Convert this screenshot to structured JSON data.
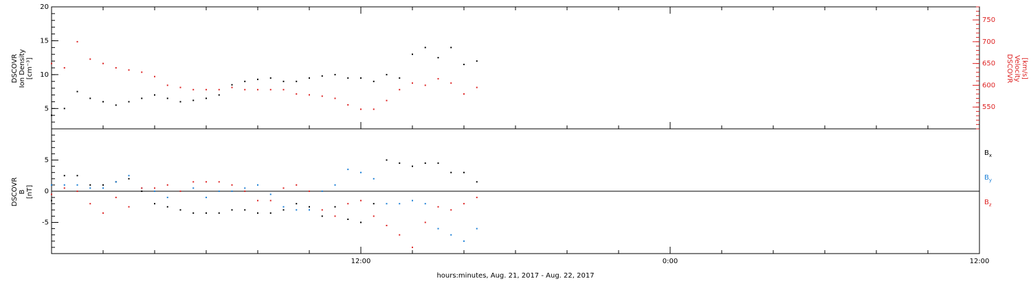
{
  "chart_data": [
    {
      "type": "scatter",
      "panel": "top",
      "ylabel_left": [
        "DSCOVR",
        "Ion Density",
        "[cm⁻³]"
      ],
      "ylabel_right": [
        "DSCOVR",
        "Velocity",
        "[km/s]"
      ],
      "x_range_hours": [
        -12,
        24
      ],
      "ylim_left": [
        2,
        20
      ],
      "ylim_right": [
        500,
        780
      ],
      "left_ticks": [
        "5",
        "10",
        "15",
        "20"
      ],
      "right_ticks": [
        "550",
        "600",
        "650",
        "700",
        "750"
      ],
      "series": [
        {
          "axis": "left",
          "color": "#000000",
          "x": [
            -12,
            -11.5,
            -11,
            -10.5,
            -10,
            -9.5,
            -9,
            -8.5,
            -8,
            -7.5,
            -7,
            -6.5,
            -6,
            -5.5,
            -5,
            -4.5,
            -4,
            -3.5,
            -3,
            -2.5,
            -2,
            -1.5,
            -1,
            -0.5,
            0,
            0.5,
            1,
            1.5,
            2,
            2.5,
            3,
            3.5,
            4,
            4.5
          ],
          "y": [
            4.0,
            5.0,
            7.5,
            6.5,
            6.0,
            5.5,
            6.0,
            6.5,
            7.0,
            6.5,
            6.0,
            6.2,
            6.5,
            7.0,
            8.5,
            9.0,
            9.3,
            9.5,
            9.0,
            9.0,
            9.5,
            9.8,
            10.0,
            9.5,
            9.5,
            9.0,
            10.0,
            9.5,
            13.0,
            14.0,
            12.5,
            14.0,
            11.5,
            12.0
          ]
        },
        {
          "axis": "right",
          "color": "#dd2222",
          "x": [
            -12,
            -11.5,
            -11,
            -10.5,
            -10,
            -9.5,
            -9,
            -8.5,
            -8,
            -7.5,
            -7,
            -6.5,
            -6,
            -5.5,
            -5,
            -4.5,
            -4,
            -3.5,
            -3,
            -2.5,
            -2,
            -1.5,
            -1,
            -0.5,
            0,
            0.5,
            1,
            1.5,
            2,
            2.5,
            3,
            3.5,
            4,
            4.5
          ],
          "y": [
            650,
            640,
            700,
            660,
            650,
            640,
            635,
            630,
            620,
            600,
            595,
            590,
            590,
            590,
            595,
            590,
            590,
            590,
            590,
            580,
            578,
            575,
            570,
            555,
            545,
            545,
            565,
            590,
            605,
            600,
            615,
            605,
            580,
            595
          ]
        }
      ]
    },
    {
      "type": "scatter",
      "panel": "bottom",
      "ylabel_left": [
        "DSCOVR",
        "B",
        "[nT]"
      ],
      "x_range_hours": [
        -12,
        24
      ],
      "ylim": [
        -10,
        10
      ],
      "left_ticks": [
        "-5",
        "0",
        "5"
      ],
      "x_ticks": [
        "12:00",
        "0:00",
        "12:00"
      ],
      "xlabel": "hours:minutes, Aug. 21, 2017 - Aug. 22, 2017",
      "series": [
        {
          "name": "Bx",
          "color": "#000000",
          "x": [
            -12,
            -11.5,
            -11,
            -10.5,
            -10,
            -9.5,
            -9,
            -8.5,
            -8,
            -7.5,
            -7,
            -6.5,
            -6,
            -5.5,
            -5,
            -4.5,
            -4,
            -3.5,
            -3,
            -2.5,
            -2,
            -1.5,
            -1,
            -0.5,
            0,
            0.5,
            1,
            1.5,
            2,
            2.5,
            3,
            3.5,
            4,
            4.5
          ],
          "y": [
            -1.5,
            2.5,
            2.5,
            1.0,
            1.0,
            1.5,
            2.0,
            0.0,
            -2.0,
            -2.5,
            -3.0,
            -3.5,
            -3.5,
            -3.5,
            -3.0,
            -3.0,
            -3.5,
            -3.5,
            -3.0,
            -2.0,
            -2.5,
            -4.0,
            -2.5,
            -4.5,
            -5.0,
            -2.0,
            5.0,
            4.5,
            4.0,
            4.5,
            4.5,
            3.0,
            3.0,
            1.5
          ]
        },
        {
          "name": "By",
          "color": "#1a7fd6",
          "x": [
            -12,
            -11.5,
            -11,
            -10.5,
            -10,
            -9.5,
            -9,
            -8.5,
            -8,
            -7.5,
            -7,
            -6.5,
            -6,
            -5.5,
            -5,
            -4.5,
            -4,
            -3.5,
            -3,
            -2.5,
            -2,
            -1.5,
            -1,
            -0.5,
            0,
            0.5,
            1,
            1.5,
            2,
            2.5,
            3,
            3.5,
            4,
            4.5
          ],
          "y": [
            1.0,
            1.0,
            1.0,
            0.5,
            0.5,
            1.5,
            2.5,
            0.5,
            0.0,
            -1.0,
            0.0,
            0.5,
            -1.0,
            0.0,
            0.0,
            0.5,
            1.0,
            -0.5,
            -2.5,
            -3.0,
            -3.0,
            0.0,
            1.0,
            3.5,
            3.0,
            2.0,
            -2.0,
            -2.0,
            -1.5,
            -2.0,
            -6.0,
            -7.0,
            -8.0,
            -6.0
          ]
        },
        {
          "name": "Bz",
          "color": "#dd2222",
          "x": [
            -12,
            -11.5,
            -11,
            -10.5,
            -10,
            -9.5,
            -9,
            -8.5,
            -8,
            -7.5,
            -7,
            -6.5,
            -6,
            -5.5,
            -5,
            -4.5,
            -4,
            -3.5,
            -3,
            -2.5,
            -2,
            -1.5,
            -1,
            -0.5,
            0,
            0.5,
            1,
            1.5,
            2,
            2.5,
            3,
            3.5,
            4,
            4.5
          ],
          "y": [
            -0.5,
            0.5,
            0.0,
            -2.0,
            -3.5,
            -1.0,
            -2.5,
            0.5,
            0.5,
            1.0,
            0.0,
            1.5,
            1.5,
            1.5,
            1.0,
            0.0,
            -1.5,
            -1.5,
            0.5,
            1.0,
            0.0,
            -3.0,
            -4.0,
            -2.0,
            -1.5,
            -4.0,
            -5.5,
            -7.0,
            -9.0,
            -5.0,
            -2.5,
            -3.0,
            -2.0,
            -1.0
          ]
        }
      ],
      "legend": [
        {
          "label": "B",
          "sub": "x",
          "color": "#000000"
        },
        {
          "label": "B",
          "sub": "y",
          "color": "#1a7fd6"
        },
        {
          "label": "B",
          "sub": "z",
          "color": "#dd2222"
        }
      ]
    }
  ]
}
